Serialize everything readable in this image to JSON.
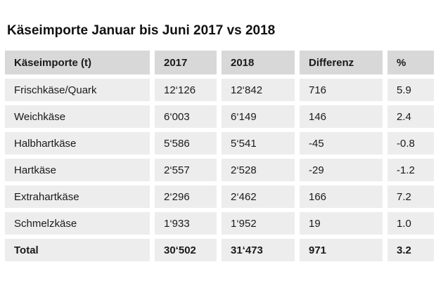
{
  "title": "Käseimporte Januar bis Juni 2017 vs 2018",
  "table": {
    "columns": [
      "Käseimporte (t)",
      "2017",
      "2018",
      "Differenz",
      "%"
    ],
    "rows": [
      {
        "cells": [
          "Frischkäse/Quark",
          "12‘126",
          "12‘842",
          "716",
          "5.9"
        ]
      },
      {
        "cells": [
          "Weichkäse",
          "6‘003",
          "6‘149",
          "146",
          "2.4"
        ]
      },
      {
        "cells": [
          "Halbhartkäse",
          "5‘586",
          "5‘541",
          "-45",
          "-0.8"
        ]
      },
      {
        "cells": [
          "Hartkäse",
          "2‘557",
          "2‘528",
          "-29",
          "-1.2"
        ]
      },
      {
        "cells": [
          "Extrahartkäse",
          "2‘296",
          "2‘462",
          "166",
          "7.2"
        ]
      },
      {
        "cells": [
          "Schmelzkäse",
          "1‘933",
          "1‘952",
          "19",
          "1.0"
        ]
      },
      {
        "cells": [
          "Total",
          "30‘502",
          "31‘473",
          "971",
          "3.2"
        ]
      }
    ]
  },
  "colors": {
    "page_bg": "#ffffff",
    "header_bg": "#d8d8d8",
    "row_bg": "#ededed",
    "text": "#1a1a1a"
  },
  "chart_data": {
    "type": "table",
    "title": "Käseimporte Januar bis Juni 2017 vs 2018",
    "columns": [
      "Käseimporte (t)",
      "2017",
      "2018",
      "Differenz",
      "%"
    ],
    "rows": [
      [
        "Frischkäse/Quark",
        12126,
        12842,
        716,
        5.9
      ],
      [
        "Weichkäse",
        6003,
        6149,
        146,
        2.4
      ],
      [
        "Halbhartkäse",
        5586,
        5541,
        -45,
        -0.8
      ],
      [
        "Hartkäse",
        2557,
        2528,
        -29,
        -1.2
      ],
      [
        "Extrahartkäse",
        2296,
        2462,
        166,
        7.2
      ],
      [
        "Schmelzkäse",
        1933,
        1952,
        19,
        1.0
      ],
      [
        "Total",
        30502,
        31473,
        971,
        3.2
      ]
    ],
    "notes": "Swiss cheese imports January-June, tonnes; thousand separator is a left single quote; Total row bold"
  }
}
